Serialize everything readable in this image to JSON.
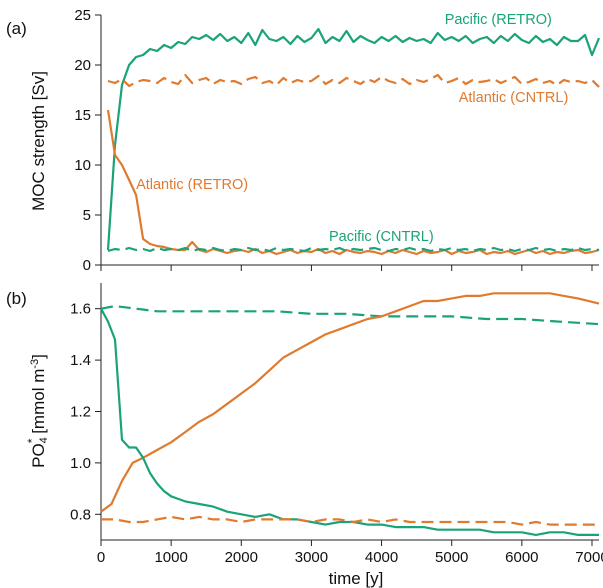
{
  "figure": {
    "panel_a_label": "(a)",
    "panel_b_label": "(b)",
    "xlabel": "time [y]"
  },
  "colors": {
    "green": "#1aa37a",
    "orange": "#e07a2e",
    "axis": "#222222"
  },
  "chart_data": [
    {
      "panel": "(a)",
      "type": "line",
      "ylabel": "MOC strength [Sv]",
      "xlim": [
        0,
        7100
      ],
      "ylim": [
        0,
        25
      ],
      "xticks": [
        0,
        1000,
        2000,
        3000,
        4000,
        5000,
        6000,
        7000
      ],
      "yticks": [
        0,
        5,
        10,
        15,
        20,
        25
      ],
      "grid": false,
      "series": [
        {
          "name": "Pacific (RETRO)",
          "color": "#1aa37a",
          "dash": "solid",
          "label_anchor": [
            4900,
            24.1
          ],
          "x": [
            100,
            200,
            300,
            400,
            500,
            600,
            700,
            800,
            900,
            1000,
            1100,
            1200,
            1300,
            1400,
            1500,
            1600,
            1700,
            1800,
            1900,
            2000,
            2100,
            2200,
            2300,
            2400,
            2500,
            2600,
            2700,
            2800,
            2900,
            3000,
            3100,
            3200,
            3300,
            3400,
            3500,
            3600,
            3700,
            3800,
            3900,
            4000,
            4100,
            4200,
            4300,
            4400,
            4500,
            4600,
            4700,
            4800,
            4900,
            5000,
            5100,
            5200,
            5300,
            5400,
            5500,
            5600,
            5700,
            5800,
            5900,
            6000,
            6100,
            6200,
            6300,
            6400,
            6500,
            6600,
            6700,
            6800,
            6900,
            7000,
            7100
          ],
          "y": [
            1.5,
            12,
            18,
            20,
            20.8,
            21,
            21.6,
            21.4,
            22,
            21.7,
            22.3,
            22.1,
            22.8,
            22.6,
            23,
            22.5,
            23.1,
            22.4,
            22.8,
            22.2,
            23.2,
            22,
            23.5,
            22.6,
            22.4,
            22.8,
            22.1,
            22.9,
            22.3,
            22.7,
            23.6,
            22.2,
            22.8,
            22.4,
            23.4,
            22.3,
            22.9,
            22.5,
            22.2,
            22.8,
            22.4,
            22.9,
            22.3,
            22.7,
            22.4,
            22.6,
            22.2,
            23.2,
            22.5,
            22.8,
            22.4,
            22.9,
            22.2,
            22.6,
            22.8,
            22.2,
            22.9,
            22.4,
            23.1,
            22.5,
            22.2,
            22.9,
            22.3,
            22.6,
            22,
            22.8,
            22.4,
            22.4,
            23,
            21,
            22.7
          ]
        },
        {
          "name": "Atlantic (CNTRL)",
          "color": "#e07a2e",
          "dash": "dashed",
          "label_anchor": [
            5100,
            16.3
          ],
          "x": [
            100,
            200,
            300,
            400,
            500,
            600,
            700,
            800,
            900,
            1000,
            1100,
            1200,
            1300,
            1400,
            1500,
            1600,
            1700,
            1800,
            1900,
            2000,
            2100,
            2200,
            2300,
            2400,
            2500,
            2600,
            2700,
            2800,
            2900,
            3000,
            3100,
            3200,
            3300,
            3400,
            3500,
            3600,
            3700,
            3800,
            3900,
            4000,
            4100,
            4200,
            4300,
            4400,
            4500,
            4600,
            4700,
            4800,
            4900,
            5000,
            5100,
            5200,
            5300,
            5400,
            5500,
            5600,
            5700,
            5800,
            5900,
            6000,
            6100,
            6200,
            6300,
            6400,
            6500,
            6600,
            6700,
            6800,
            6900,
            7000,
            7100
          ],
          "y": [
            18.4,
            18.2,
            18.6,
            17.9,
            18.3,
            18.5,
            18.4,
            18.2,
            18.7,
            18.3,
            18.1,
            19,
            18.2,
            18.5,
            18.7,
            18.1,
            18.5,
            18.3,
            18.4,
            18.1,
            18.6,
            18.8,
            18.2,
            18.4,
            18,
            18.7,
            18.2,
            18.5,
            18.3,
            18.4,
            18.9,
            18.1,
            18.5,
            18.2,
            18.7,
            18.4,
            18.1,
            18.6,
            18.3,
            18.8,
            18.4,
            18.2,
            18.6,
            18.1,
            18.5,
            18.3,
            18.6,
            19,
            18.2,
            18.4,
            18.7,
            18.1,
            18.5,
            18.3,
            18.4,
            18.6,
            18.2,
            18.5,
            18.8,
            18.1,
            18.3,
            18.6,
            18.2,
            18.4,
            18,
            18.5,
            18.3,
            18.4,
            18.2,
            18.5,
            17.8
          ]
        },
        {
          "name": "Atlantic (RETRO)",
          "color": "#e07a2e",
          "dash": "solid",
          "label_anchor": [
            500,
            7.6
          ],
          "x": [
            100,
            200,
            300,
            400,
            500,
            600,
            700,
            800,
            900,
            1000,
            1100,
            1200,
            1300,
            1400,
            1500,
            1600,
            1700,
            1800,
            1900,
            2000,
            2100,
            2200,
            2300,
            2400,
            2500,
            2600,
            2700,
            2800,
            2900,
            3000,
            3100,
            3200,
            3300,
            3400,
            3500,
            3600,
            3700,
            3800,
            3900,
            4000,
            4100,
            4200,
            4300,
            4400,
            4500,
            4600,
            4700,
            4800,
            4900,
            5000,
            5100,
            5200,
            5300,
            5400,
            5500,
            5600,
            5700,
            5800,
            5900,
            6000,
            6100,
            6200,
            6300,
            6400,
            6500,
            6600,
            6700,
            6800,
            6900,
            7000,
            7100
          ],
          "y": [
            15.5,
            11,
            10,
            8.5,
            7,
            2.6,
            2.1,
            1.9,
            1.8,
            1.6,
            1.5,
            1.5,
            2.3,
            1.5,
            1.3,
            1.6,
            1.4,
            1.2,
            1.4,
            1.5,
            1.3,
            1.6,
            1.2,
            1.4,
            1.1,
            1.3,
            1.5,
            1.2,
            1.4,
            1.3,
            1.6,
            1.2,
            1.4,
            1.1,
            1.5,
            1.3,
            1.2,
            1.4,
            1.3,
            1.1,
            1.4,
            1.2,
            1.5,
            1.3,
            1.1,
            1.4,
            1.2,
            1.3,
            1.5,
            1.1,
            1.4,
            1.2,
            1.3,
            1.5,
            1.1,
            1.3,
            1.2,
            1.4,
            1.1,
            1.3,
            1.5,
            1.2,
            1.4,
            1.1,
            1.3,
            1.2,
            1.4,
            1.5,
            1.2,
            1.3,
            1.5
          ]
        },
        {
          "name": "Pacific (CNTRL)",
          "color": "#1aa37a",
          "dash": "dashed",
          "label_anchor": [
            3250,
            2.4
          ],
          "x": [
            100,
            200,
            300,
            400,
            500,
            600,
            700,
            800,
            900,
            1000,
            1100,
            1200,
            1300,
            1400,
            1500,
            1600,
            1700,
            1800,
            1900,
            2000,
            2100,
            2200,
            2300,
            2400,
            2500,
            2600,
            2700,
            2800,
            2900,
            3000,
            3100,
            3200,
            3300,
            3400,
            3500,
            3600,
            3700,
            3800,
            3900,
            4000,
            4100,
            4200,
            4300,
            4400,
            4500,
            4600,
            4700,
            4800,
            4900,
            5000,
            5100,
            5200,
            5300,
            5400,
            5500,
            5600,
            5700,
            5800,
            5900,
            6000,
            6100,
            6200,
            6300,
            6400,
            6500,
            6600,
            6700,
            6800,
            6900,
            7000,
            7100
          ],
          "y": [
            1.4,
            1.6,
            1.5,
            1.7,
            1.5,
            1.6,
            1.4,
            1.7,
            1.5,
            1.6,
            1.5,
            1.7,
            1.4,
            1.6,
            1.5,
            1.7,
            1.5,
            1.4,
            1.6,
            1.5,
            1.7,
            1.5,
            1.6,
            1.4,
            1.7,
            1.5,
            1.6,
            1.5,
            1.4,
            1.7,
            1.5,
            1.6,
            1.5,
            1.7,
            1.4,
            1.6,
            1.5,
            1.6,
            1.7,
            1.5,
            1.4,
            1.6,
            1.5,
            1.7,
            1.5,
            1.6,
            1.4,
            1.6,
            1.5,
            1.7,
            1.5,
            1.6,
            1.4,
            1.6,
            1.5,
            1.7,
            1.5,
            1.6,
            1.4,
            1.6,
            1.5,
            1.7,
            1.5,
            1.6,
            1.4,
            1.6,
            1.5,
            1.7,
            1.5,
            1.6,
            1.5
          ]
        }
      ]
    },
    {
      "panel": "(b)",
      "type": "line",
      "ylabel": "PO4* [mmol m-3]",
      "ylabel_parts": {
        "base": "PO",
        "sub": "4",
        "sup": "*",
        "unit_open": " [mmol m",
        "unit_exp": "-3",
        "unit_close": "]"
      },
      "xlabel": "time [y]",
      "xlim": [
        0,
        7100
      ],
      "ylim": [
        0.7,
        1.7
      ],
      "xticks": [
        0,
        1000,
        2000,
        3000,
        4000,
        5000,
        6000,
        7000
      ],
      "yticks": [
        0.8,
        1.0,
        1.2,
        1.4,
        1.6
      ],
      "ytick_labels": [
        "0.8",
        "1.0",
        "1.2",
        "1.4",
        "1.6"
      ],
      "grid": false,
      "series": [
        {
          "name": "Pacific (CNTRL)",
          "color": "#1aa37a",
          "dash": "dashed",
          "x": [
            0,
            200,
            500,
            800,
            1000,
            1500,
            2000,
            2500,
            3000,
            3500,
            4000,
            4500,
            5000,
            5500,
            6000,
            6500,
            7100
          ],
          "y": [
            1.6,
            1.61,
            1.6,
            1.59,
            1.59,
            1.59,
            1.59,
            1.59,
            1.58,
            1.58,
            1.57,
            1.57,
            1.57,
            1.56,
            1.56,
            1.55,
            1.54
          ]
        },
        {
          "name": "Atlantic (RETRO)",
          "color": "#e07a2e",
          "dash": "solid",
          "x": [
            0,
            150,
            300,
            450,
            600,
            800,
            1000,
            1200,
            1400,
            1600,
            1800,
            2000,
            2200,
            2400,
            2600,
            2800,
            3000,
            3200,
            3400,
            3600,
            3800,
            4000,
            4200,
            4400,
            4600,
            4800,
            5000,
            5200,
            5400,
            5600,
            5800,
            6000,
            6200,
            6400,
            6600,
            6800,
            7100
          ],
          "y": [
            0.81,
            0.84,
            0.93,
            1.0,
            1.02,
            1.05,
            1.08,
            1.12,
            1.16,
            1.19,
            1.23,
            1.27,
            1.31,
            1.36,
            1.41,
            1.44,
            1.47,
            1.5,
            1.52,
            1.54,
            1.56,
            1.57,
            1.59,
            1.61,
            1.63,
            1.63,
            1.64,
            1.65,
            1.65,
            1.66,
            1.66,
            1.66,
            1.66,
            1.66,
            1.65,
            1.64,
            1.62
          ]
        },
        {
          "name": "Pacific (RETRO)",
          "color": "#1aa37a",
          "dash": "solid",
          "x": [
            0,
            100,
            200,
            300,
            400,
            500,
            600,
            700,
            800,
            900,
            1000,
            1100,
            1200,
            1400,
            1600,
            1800,
            2000,
            2200,
            2400,
            2600,
            2800,
            3000,
            3200,
            3400,
            3600,
            3800,
            4000,
            4200,
            4400,
            4600,
            4800,
            5000,
            5200,
            5400,
            5600,
            5800,
            6000,
            6200,
            6400,
            6600,
            6800,
            7100
          ],
          "y": [
            1.6,
            1.55,
            1.48,
            1.09,
            1.06,
            1.06,
            1.02,
            0.96,
            0.92,
            0.89,
            0.87,
            0.86,
            0.85,
            0.84,
            0.83,
            0.81,
            0.8,
            0.79,
            0.8,
            0.78,
            0.78,
            0.77,
            0.76,
            0.77,
            0.77,
            0.76,
            0.76,
            0.75,
            0.75,
            0.75,
            0.74,
            0.74,
            0.74,
            0.74,
            0.73,
            0.73,
            0.73,
            0.72,
            0.73,
            0.73,
            0.72,
            0.72
          ]
        },
        {
          "name": "Atlantic (CNTRL)",
          "color": "#e07a2e",
          "dash": "dashed",
          "x": [
            0,
            200,
            400,
            600,
            800,
            1000,
            1200,
            1400,
            1600,
            1800,
            2000,
            2200,
            2400,
            2600,
            2800,
            3000,
            3200,
            3400,
            3600,
            3800,
            4000,
            4200,
            4400,
            4600,
            4800,
            5000,
            5200,
            5400,
            5600,
            5800,
            6000,
            6200,
            6400,
            6600,
            6800,
            7100
          ],
          "y": [
            0.78,
            0.78,
            0.77,
            0.77,
            0.78,
            0.79,
            0.78,
            0.79,
            0.78,
            0.78,
            0.77,
            0.78,
            0.78,
            0.78,
            0.78,
            0.77,
            0.78,
            0.78,
            0.77,
            0.78,
            0.77,
            0.78,
            0.77,
            0.77,
            0.77,
            0.77,
            0.77,
            0.77,
            0.77,
            0.77,
            0.76,
            0.77,
            0.76,
            0.76,
            0.76,
            0.76
          ]
        }
      ]
    }
  ]
}
